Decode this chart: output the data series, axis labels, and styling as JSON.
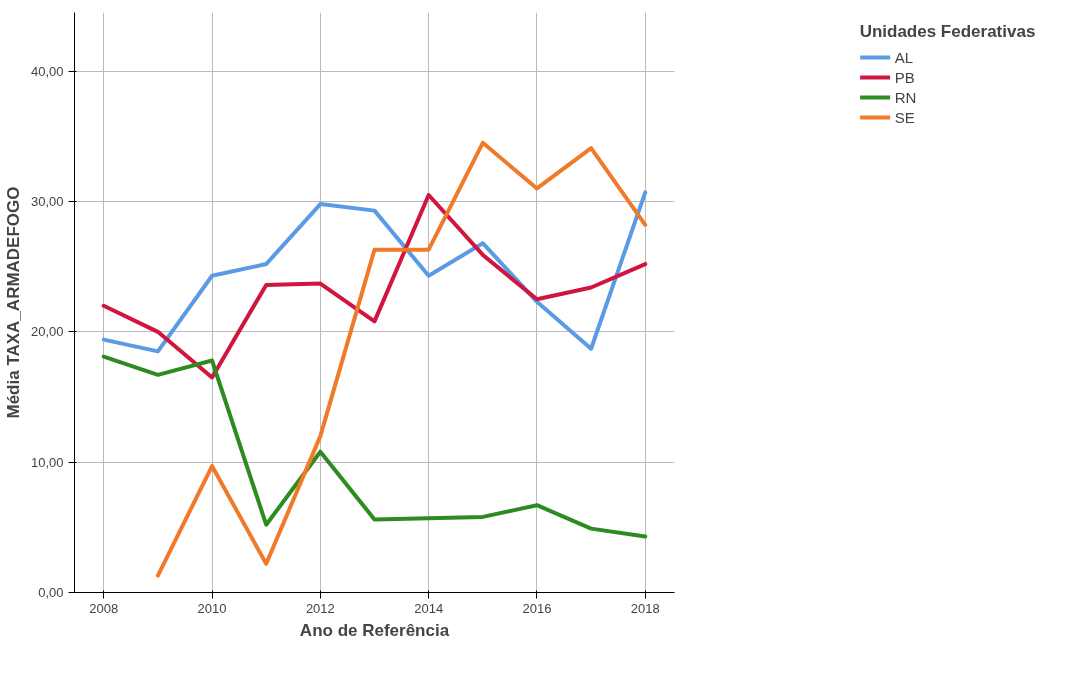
{
  "chart_data": {
    "type": "line",
    "xlabel": "Ano de Referência",
    "ylabel": "Média TAXA_ARMADEFOGO",
    "legend_title": "Unidades Federativas",
    "x": [
      2008,
      2009,
      2010,
      2011,
      2012,
      2013,
      2014,
      2015,
      2016,
      2017,
      2018
    ],
    "series": [
      {
        "name": "AL",
        "color": "#5b9be6",
        "values": [
          19.4,
          18.5,
          24.3,
          25.2,
          29.8,
          29.3,
          24.3,
          26.8,
          22.3,
          18.7,
          30.7
        ]
      },
      {
        "name": "PB",
        "color": "#d0163f",
        "values": [
          22.0,
          20.0,
          16.5,
          23.6,
          23.7,
          20.8,
          30.5,
          25.9,
          22.5,
          23.4,
          25.2
        ]
      },
      {
        "name": "RN",
        "color": "#2e8b22",
        "values": [
          18.1,
          16.7,
          17.8,
          5.2,
          10.8,
          5.6,
          5.7,
          5.8,
          6.7,
          4.9,
          4.3
        ]
      },
      {
        "name": "SE",
        "color": "#f07a2a",
        "values": [
          null,
          1.3,
          9.7,
          2.2,
          12.0,
          26.3,
          26.3,
          34.5,
          31.0,
          34.1,
          28.2
        ]
      }
    ],
    "xlim": [
      2007.46,
      2018.54
    ],
    "ylim": [
      0,
      44.5
    ],
    "xticks": [
      2008,
      2010,
      2012,
      2014,
      2016,
      2018
    ],
    "yticks": [
      {
        "value": 0,
        "label": "0,00"
      },
      {
        "value": 10,
        "label": "10,00"
      },
      {
        "value": 20,
        "label": "20,00"
      },
      {
        "value": 30,
        "label": "30,00"
      },
      {
        "value": 40,
        "label": "40,00"
      }
    ],
    "grid": true,
    "legend": "top right",
    "line_style": "solid",
    "marker": "none"
  }
}
